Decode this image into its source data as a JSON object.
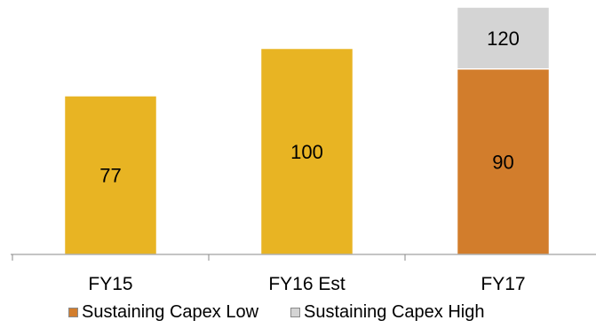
{
  "chart_data": {
    "type": "bar",
    "stacked": true,
    "categories": [
      "FY15",
      "FY16 Est",
      "FY17"
    ],
    "series": [
      {
        "name": "",
        "color": "#E8B423",
        "values": [
          77,
          100,
          null
        ],
        "labels": [
          "77",
          "100",
          ""
        ]
      },
      {
        "name": "Sustaining Capex Low",
        "color": "#D27D2C",
        "values": [
          null,
          null,
          90
        ],
        "labels": [
          "",
          "",
          "90"
        ]
      },
      {
        "name": "Sustaining Capex High",
        "color": "#D4D4D4",
        "values": [
          null,
          null,
          30
        ],
        "labels": [
          "",
          "",
          "120"
        ]
      }
    ],
    "ylim": [
      0,
      120
    ],
    "grid": false,
    "legend_position": "bottom"
  }
}
